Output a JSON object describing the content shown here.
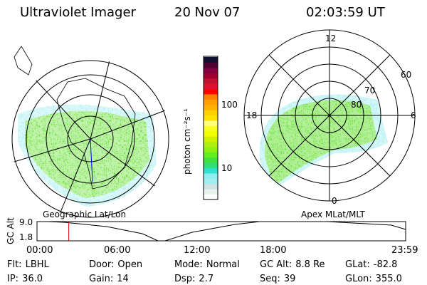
{
  "header": {
    "title": "Ultraviolet Imager",
    "date": "20 Nov 07",
    "time": "02:03:59 UT"
  },
  "colorbar": {
    "label": "photon cm⁻²s⁻¹",
    "ticks": [
      "100",
      "10"
    ],
    "colors": [
      "#ffffff",
      "#e8f2ec",
      "#d0e2e2",
      "#a0f0f2",
      "#90eef0",
      "#30e0d0",
      "#30e070",
      "#40e040",
      "#60f020",
      "#90f010",
      "#b0f010",
      "#d0f000",
      "#f0ff00",
      "#f8ff20",
      "#ffff80",
      "#ffe000",
      "#ffd000",
      "#ffb000",
      "#ffa000",
      "#ff8000",
      "#ff0000",
      "#e01030",
      "#c01030",
      "#a00030",
      "#800040",
      "#500030",
      "#101030"
    ]
  },
  "left_map": {
    "label": "Geographic Lat/Lon"
  },
  "right_map": {
    "label": "Apex MLat/MLT",
    "mlt_labels": {
      "top": "12",
      "bottom": "0",
      "left": "18",
      "right": "6"
    },
    "lat_labels": [
      "60",
      "70",
      "80"
    ]
  },
  "altitude_plot": {
    "ylabel": "GC Alt",
    "yticks": [
      "9.0",
      "1.8"
    ],
    "xticks": [
      "00:00",
      "06:00",
      "12:00",
      "18:00",
      "23:59"
    ],
    "current_time_fraction": 0.0861
  },
  "info": [
    [
      {
        "k": "Flt:",
        "v": "LBHL"
      },
      {
        "k": "Door:",
        "v": "Open"
      },
      {
        "k": "Mode:",
        "v": "Normal"
      },
      {
        "k": "GC Alt:",
        "v": "8.8 Re"
      },
      {
        "k": "GLat:",
        "v": "-82.8"
      }
    ],
    [
      {
        "k": "IP:",
        "v": "36.0"
      },
      {
        "k": "Gain:",
        "v": "14"
      },
      {
        "k": "Dsp:",
        "v": "2.7"
      },
      {
        "k": "Seq:",
        "v": "39"
      },
      {
        "k": "GLon:",
        "v": "355.0"
      }
    ]
  ]
}
